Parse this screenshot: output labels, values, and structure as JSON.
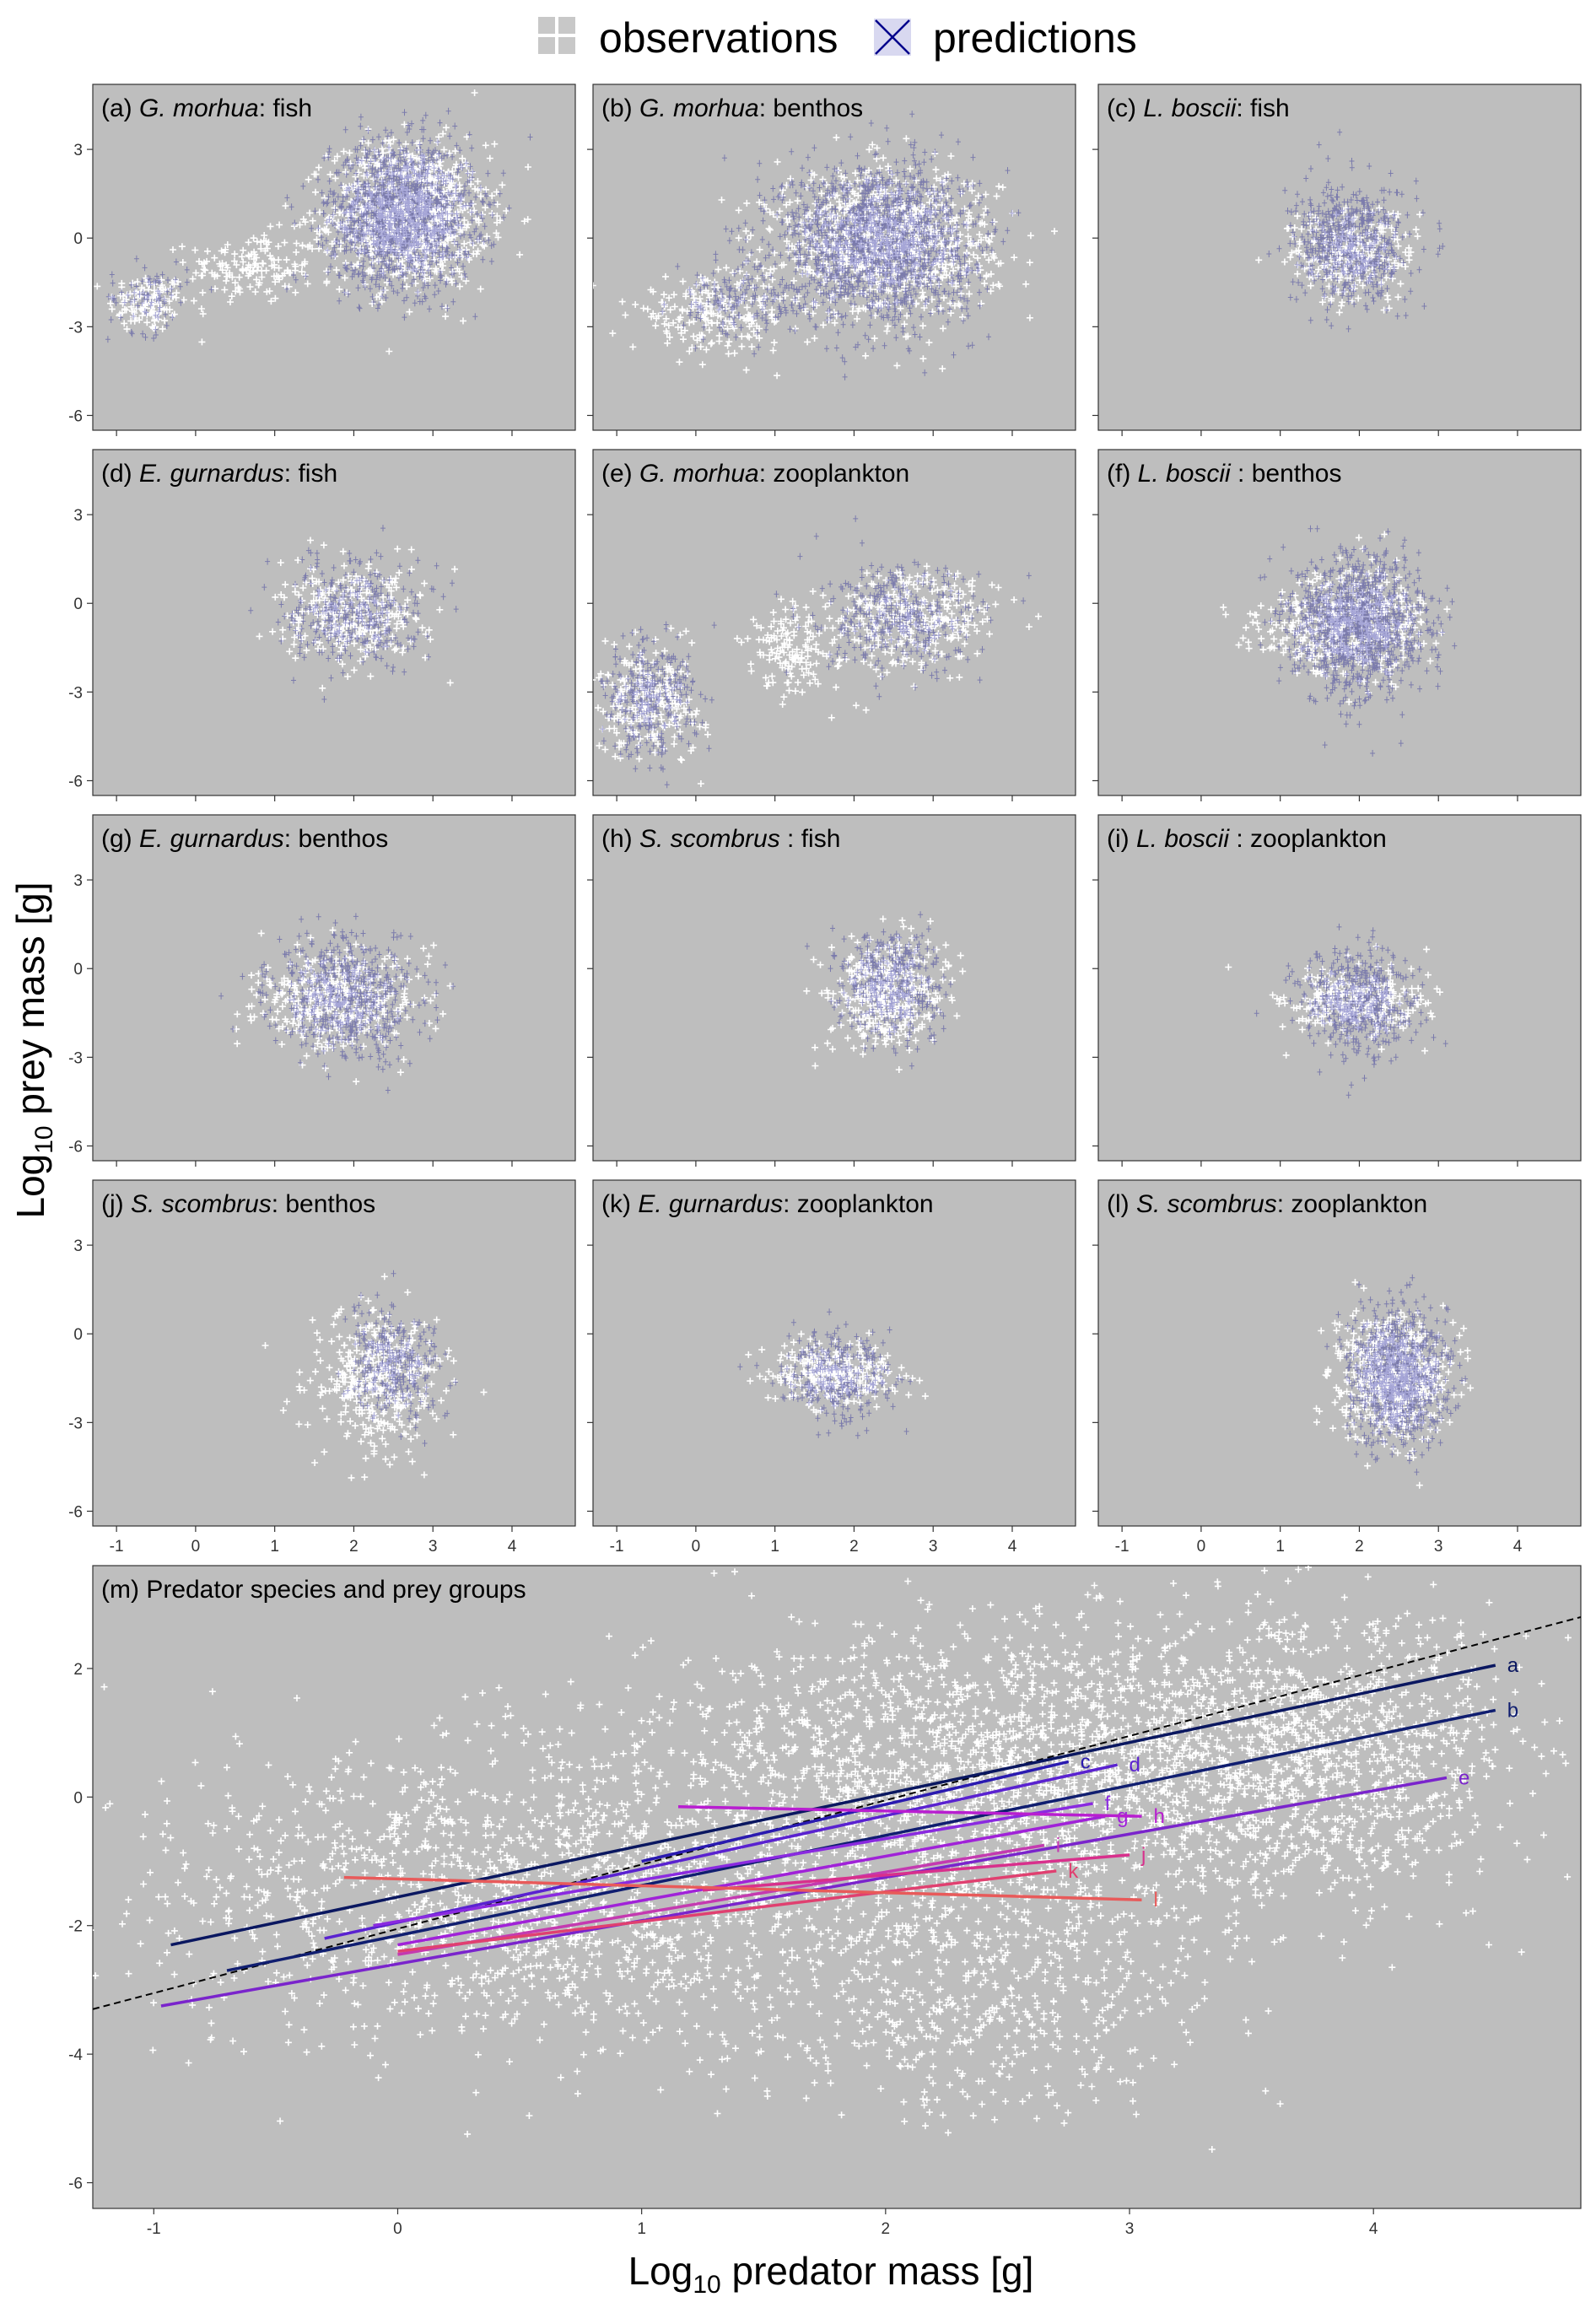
{
  "legend": {
    "observations_label": "observations",
    "predictions_label": "predictions",
    "observations_icon": "grid-square-icon",
    "predictions_icon": "cross-box-icon"
  },
  "axes": {
    "ylabel_main": "Log",
    "ylabel_sub": "10",
    "ylabel_rest": " prey mass [g]",
    "xlabel_main": "Log",
    "xlabel_sub": "10",
    "xlabel_rest": " predator mass [g]"
  },
  "colors": {
    "panel_background": "#bebebe",
    "observations": "#ffffff",
    "predictions": "#00008b",
    "reference_line": "#000000"
  },
  "chart_data": [
    {
      "type": "scatter",
      "id": "a",
      "title_prefix": "(a) ",
      "species": "G. morhua",
      "title_suffix": ": fish",
      "xlim": [
        -1.3,
        4.8
      ],
      "ylim": [
        -6.5,
        5.2
      ],
      "xticks": [
        -1,
        0,
        1,
        2,
        3,
        4
      ],
      "yticks": [
        3,
        0,
        -3,
        -6
      ],
      "obs_blobs": [
        {
          "x": -0.6,
          "y": -2.2,
          "sx": 0.25,
          "sy": 0.5,
          "n": 120
        },
        {
          "x": 0.7,
          "y": -1.0,
          "sx": 0.4,
          "sy": 0.6,
          "n": 150
        },
        {
          "x": 2.7,
          "y": 0.8,
          "sx": 0.5,
          "sy": 1.2,
          "n": 900
        }
      ],
      "pred_blobs": [
        {
          "x": -0.6,
          "y": -2.0,
          "sx": 0.25,
          "sy": 0.6,
          "n": 80
        },
        {
          "x": 2.6,
          "y": 0.8,
          "sx": 0.45,
          "sy": 1.2,
          "n": 1500
        }
      ]
    },
    {
      "type": "scatter",
      "id": "b",
      "title_prefix": "(b) ",
      "species": "G. morhua",
      "title_suffix": ": benthos",
      "xlim": [
        -1.3,
        4.8
      ],
      "ylim": [
        -6.5,
        5.2
      ],
      "xticks": [
        -1,
        0,
        1,
        2,
        3,
        4
      ],
      "yticks": [
        3,
        0,
        -3,
        -6
      ],
      "obs_blobs": [
        {
          "x": 0.2,
          "y": -2.6,
          "sx": 0.5,
          "sy": 0.6,
          "n": 200
        },
        {
          "x": 2.4,
          "y": -0.2,
          "sx": 0.7,
          "sy": 1.2,
          "n": 900
        }
      ],
      "pred_blobs": [
        {
          "x": 0.5,
          "y": -2.2,
          "sx": 0.4,
          "sy": 0.6,
          "n": 150
        },
        {
          "x": 2.3,
          "y": -0.1,
          "sx": 0.6,
          "sy": 1.3,
          "n": 1600
        }
      ]
    },
    {
      "type": "scatter",
      "id": "c",
      "title_prefix": "(c) ",
      "species": "L. boscii",
      "title_suffix": ": fish",
      "xlim": [
        -1.3,
        4.8
      ],
      "ylim": [
        -6.5,
        5.2
      ],
      "xticks": [
        -1,
        0,
        1,
        2,
        3,
        4
      ],
      "yticks": [
        3,
        0,
        -3,
        -6
      ],
      "obs_blobs": [
        {
          "x": 1.9,
          "y": -0.6,
          "sx": 0.4,
          "sy": 0.8,
          "n": 250
        }
      ],
      "pred_blobs": [
        {
          "x": 1.9,
          "y": -0.2,
          "sx": 0.35,
          "sy": 1.0,
          "n": 600
        }
      ]
    },
    {
      "type": "scatter",
      "id": "d",
      "title_prefix": "(d) ",
      "species": "E. gurnardus",
      "title_suffix": ": fish",
      "xlim": [
        -1.3,
        4.8
      ],
      "ylim": [
        -6.5,
        5.2
      ],
      "xticks": [
        -1,
        0,
        1,
        2,
        3,
        4
      ],
      "yticks": [
        3,
        0,
        -3,
        -6
      ],
      "obs_blobs": [
        {
          "x": 2.0,
          "y": -0.4,
          "sx": 0.45,
          "sy": 0.8,
          "n": 300
        }
      ],
      "pred_blobs": [
        {
          "x": 2.0,
          "y": -0.3,
          "sx": 0.4,
          "sy": 0.9,
          "n": 350
        }
      ]
    },
    {
      "type": "scatter",
      "id": "e",
      "title_prefix": "(e) ",
      "species": "G. morhua",
      "title_suffix": ": zooplankton",
      "xlim": [
        -1.3,
        4.8
      ],
      "ylim": [
        -6.5,
        5.2
      ],
      "xticks": [
        -1,
        0,
        1,
        2,
        3,
        4
      ],
      "yticks": [
        3,
        0,
        -3,
        -6
      ],
      "obs_blobs": [
        {
          "x": -0.6,
          "y": -3.3,
          "sx": 0.35,
          "sy": 0.9,
          "n": 250
        },
        {
          "x": 1.3,
          "y": -1.6,
          "sx": 0.35,
          "sy": 0.8,
          "n": 150
        },
        {
          "x": 2.8,
          "y": -0.5,
          "sx": 0.5,
          "sy": 0.8,
          "n": 300
        }
      ],
      "pred_blobs": [
        {
          "x": -0.6,
          "y": -3.2,
          "sx": 0.3,
          "sy": 1.0,
          "n": 300
        },
        {
          "x": 2.6,
          "y": -0.6,
          "sx": 0.5,
          "sy": 0.9,
          "n": 350
        }
      ]
    },
    {
      "type": "scatter",
      "id": "f",
      "title_prefix": "(f) ",
      "species": "L. boscii",
      "title_suffix": " : benthos",
      "xlim": [
        -1.3,
        4.8
      ],
      "ylim": [
        -6.5,
        5.2
      ],
      "xticks": [
        -1,
        0,
        1,
        2,
        3,
        4
      ],
      "yticks": [
        3,
        0,
        -3,
        -6
      ],
      "obs_blobs": [
        {
          "x": 1.2,
          "y": -1.0,
          "sx": 0.4,
          "sy": 0.5,
          "n": 80
        },
        {
          "x": 2.0,
          "y": -0.6,
          "sx": 0.4,
          "sy": 0.9,
          "n": 400
        }
      ],
      "pred_blobs": [
        {
          "x": 2.0,
          "y": -0.7,
          "sx": 0.4,
          "sy": 1.1,
          "n": 1200
        }
      ]
    },
    {
      "type": "scatter",
      "id": "g",
      "title_prefix": "(g) ",
      "species": "E. gurnardus",
      "title_suffix": ": benthos",
      "xlim": [
        -1.3,
        4.8
      ],
      "ylim": [
        -6.5,
        5.2
      ],
      "xticks": [
        -1,
        0,
        1,
        2,
        3,
        4
      ],
      "yticks": [
        3,
        0,
        -3,
        -6
      ],
      "obs_blobs": [
        {
          "x": 1.8,
          "y": -1.1,
          "sx": 0.5,
          "sy": 0.8,
          "n": 400
        }
      ],
      "pred_blobs": [
        {
          "x": 1.9,
          "y": -1.0,
          "sx": 0.45,
          "sy": 1.0,
          "n": 600
        }
      ]
    },
    {
      "type": "scatter",
      "id": "h",
      "title_prefix": "(h) ",
      "species": "S. scombrus",
      "title_suffix": " : fish",
      "xlim": [
        -1.3,
        4.8
      ],
      "ylim": [
        -6.5,
        5.2
      ],
      "xticks": [
        -1,
        0,
        1,
        2,
        3,
        4
      ],
      "yticks": [
        3,
        0,
        -3,
        -6
      ],
      "obs_blobs": [
        {
          "x": 2.4,
          "y": -0.8,
          "sx": 0.35,
          "sy": 0.9,
          "n": 400
        }
      ],
      "pred_blobs": [
        {
          "x": 2.5,
          "y": -0.5,
          "sx": 0.3,
          "sy": 0.9,
          "n": 400
        }
      ]
    },
    {
      "type": "scatter",
      "id": "i",
      "title_prefix": "(i) ",
      "species": "L. boscii",
      "title_suffix": " : zooplankton",
      "xlim": [
        -1.3,
        4.8
      ],
      "ylim": [
        -6.5,
        5.2
      ],
      "xticks": [
        -1,
        0,
        1,
        2,
        3,
        4
      ],
      "yticks": [
        3,
        0,
        -3,
        -6
      ],
      "obs_blobs": [
        {
          "x": 1.9,
          "y": -1.2,
          "sx": 0.45,
          "sy": 0.6,
          "n": 300
        }
      ],
      "pred_blobs": [
        {
          "x": 2.0,
          "y": -1.2,
          "sx": 0.35,
          "sy": 0.9,
          "n": 500
        }
      ]
    },
    {
      "type": "scatter",
      "id": "j",
      "title_prefix": "(j) ",
      "species": "S. scombrus",
      "title_suffix": ": benthos",
      "xlim": [
        -1.3,
        4.8
      ],
      "ylim": [
        -6.5,
        5.2
      ],
      "xticks": [
        -1,
        0,
        1,
        2,
        3,
        4
      ],
      "yticks": [
        3,
        0,
        -3,
        -6
      ],
      "obs_blobs": [
        {
          "x": 2.3,
          "y": -1.6,
          "sx": 0.4,
          "sy": 1.2,
          "n": 400
        }
      ],
      "pred_blobs": [
        {
          "x": 2.5,
          "y": -1.0,
          "sx": 0.3,
          "sy": 0.9,
          "n": 300
        }
      ]
    },
    {
      "type": "scatter",
      "id": "k",
      "title_prefix": "(k) ",
      "species": "E. gurnardus",
      "title_suffix": ": zooplankton",
      "xlim": [
        -1.3,
        4.8
      ],
      "ylim": [
        -6.5,
        5.2
      ],
      "xticks": [
        -1,
        0,
        1,
        2,
        3,
        4
      ],
      "yticks": [
        3,
        0,
        -3,
        -6
      ],
      "obs_blobs": [
        {
          "x": 1.8,
          "y": -1.4,
          "sx": 0.4,
          "sy": 0.5,
          "n": 300
        }
      ],
      "pred_blobs": [
        {
          "x": 1.8,
          "y": -1.4,
          "sx": 0.35,
          "sy": 0.7,
          "n": 300
        }
      ]
    },
    {
      "type": "scatter",
      "id": "l",
      "title_prefix": "(l) ",
      "species": "S. scombrus",
      "title_suffix": ": zooplankton",
      "xlim": [
        -1.3,
        4.8
      ],
      "ylim": [
        -6.5,
        5.2
      ],
      "xticks": [
        -1,
        0,
        1,
        2,
        3,
        4
      ],
      "yticks": [
        3,
        0,
        -3,
        -6
      ],
      "obs_blobs": [
        {
          "x": 2.4,
          "y": -1.5,
          "sx": 0.35,
          "sy": 1.0,
          "n": 600
        }
      ],
      "pred_blobs": [
        {
          "x": 2.5,
          "y": -1.4,
          "sx": 0.3,
          "sy": 1.1,
          "n": 900
        }
      ]
    },
    {
      "type": "scatter",
      "id": "m",
      "title_prefix": "(m) ",
      "species": "",
      "title_suffix": "Predator species and prey groups",
      "xlim": [
        -1.25,
        4.85
      ],
      "ylim": [
        -6.4,
        3.6
      ],
      "xticks": [
        -1,
        0,
        1,
        2,
        3,
        4
      ],
      "yticks": [
        2,
        0,
        -2,
        -4,
        -6
      ],
      "obs_blobs": [
        {
          "x": 0.5,
          "y": -1.5,
          "sx": 0.8,
          "sy": 1.2,
          "n": 1500
        },
        {
          "x": 2.5,
          "y": 0.3,
          "sx": 0.7,
          "sy": 1.2,
          "n": 2000
        },
        {
          "x": 3.8,
          "y": 0.7,
          "sx": 0.4,
          "sy": 1.1,
          "n": 900
        },
        {
          "x": 2.4,
          "y": -3.0,
          "sx": 0.5,
          "sy": 1.0,
          "n": 500
        }
      ],
      "pred_blobs": [],
      "reference_line": {
        "x": [
          -1.25,
          4.85
        ],
        "y": [
          -3.3,
          2.8
        ]
      },
      "lines": [
        {
          "label": "a",
          "x": [
            -0.93,
            4.5
          ],
          "y": [
            -2.3,
            2.05
          ],
          "color": "#0a1760"
        },
        {
          "label": "b",
          "x": [
            -0.7,
            4.5
          ],
          "y": [
            -2.7,
            1.35
          ],
          "color": "#101e70"
        },
        {
          "label": "c",
          "x": [
            1.0,
            2.75
          ],
          "y": [
            -1.0,
            0.55
          ],
          "color": "#2a1ab0"
        },
        {
          "label": "d",
          "x": [
            -0.3,
            2.95
          ],
          "y": [
            -2.2,
            0.5
          ],
          "color": "#5a22d0"
        },
        {
          "label": "e",
          "x": [
            -0.97,
            4.3
          ],
          "y": [
            -3.25,
            0.3
          ],
          "color": "#7a24cc"
        },
        {
          "label": "f",
          "x": [
            -0.1,
            2.85
          ],
          "y": [
            -2.0,
            -0.1
          ],
          "color": "#8a2ae0"
        },
        {
          "label": "g",
          "x": [
            0.0,
            2.9
          ],
          "y": [
            -2.3,
            -0.3
          ],
          "color": "#a022d8"
        },
        {
          "label": "h",
          "x": [
            1.15,
            3.05
          ],
          "y": [
            -0.15,
            -0.3
          ],
          "color": "#b81ed0"
        },
        {
          "label": "i",
          "x": [
            0.0,
            2.65
          ],
          "y": [
            -2.45,
            -0.75
          ],
          "color": "#c43ab0"
        },
        {
          "label": "j",
          "x": [
            1.25,
            3.0
          ],
          "y": [
            -1.45,
            -0.9
          ],
          "color": "#d8308c"
        },
        {
          "label": "k",
          "x": [
            0.0,
            2.7
          ],
          "y": [
            -2.4,
            -1.15
          ],
          "color": "#e04070"
        },
        {
          "label": "l",
          "x": [
            -0.22,
            3.05
          ],
          "y": [
            -1.25,
            -1.6
          ],
          "color": "#e85a5a"
        }
      ]
    }
  ]
}
